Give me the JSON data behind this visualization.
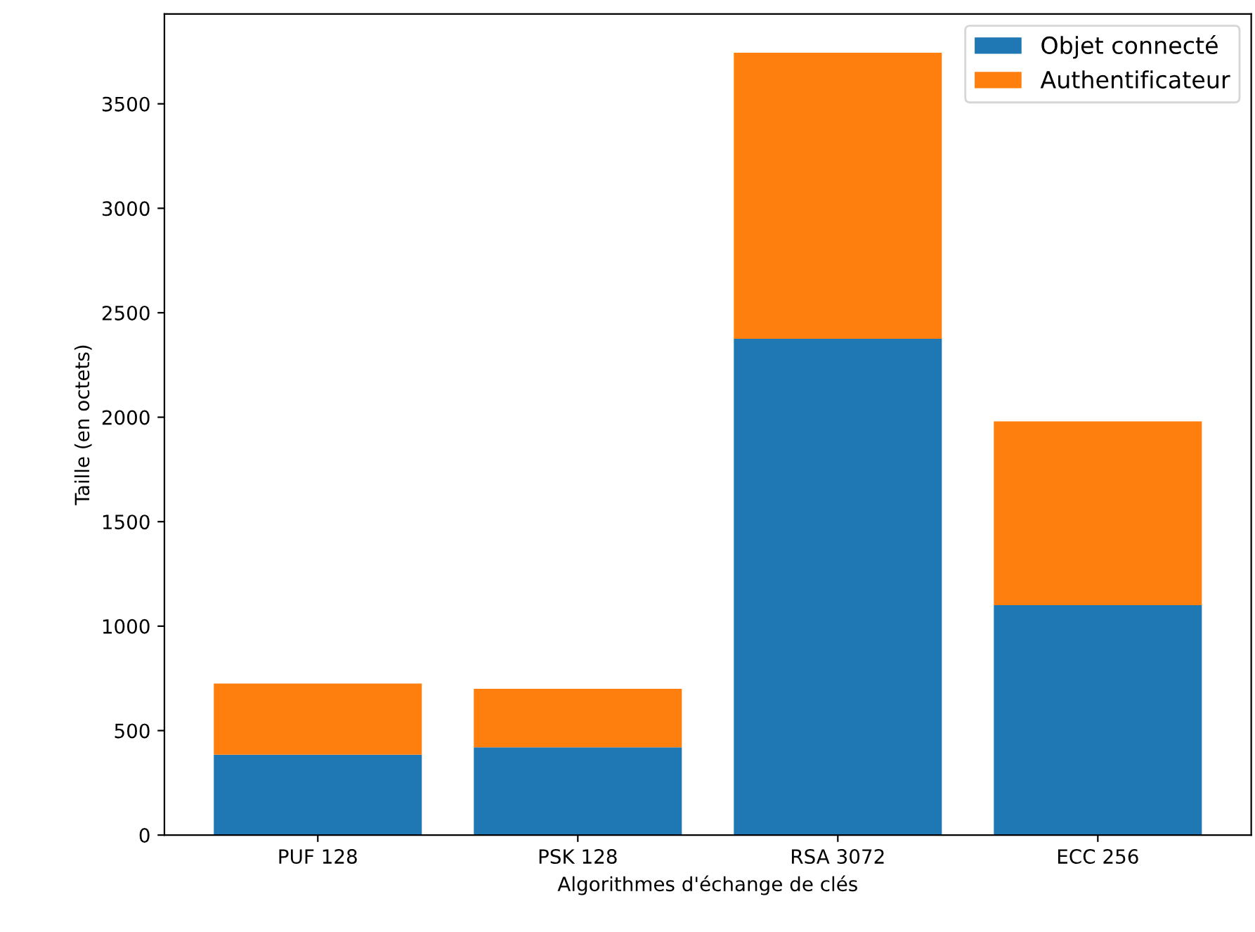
{
  "chart_data": {
    "type": "bar",
    "stacked": true,
    "xlabel": "Algorithmes d'échange de clés",
    "ylabel": "Taille (en octets)",
    "categories": [
      "PUF 128",
      "PSK 128",
      "RSA 3072",
      "ECC 256"
    ],
    "series": [
      {
        "name": "Objet connecté",
        "color": "#1f77b4",
        "values": [
          385,
          420,
          2375,
          1100
        ]
      },
      {
        "name": "Authentificateur",
        "color": "#ff7f0e",
        "values": [
          340,
          280,
          1370,
          880
        ]
      }
    ],
    "ylim": [
      0,
      3930
    ],
    "yticks": [
      0,
      500,
      1000,
      1500,
      2000,
      2500,
      3000,
      3500
    ],
    "grid": false,
    "legend": "top right"
  }
}
